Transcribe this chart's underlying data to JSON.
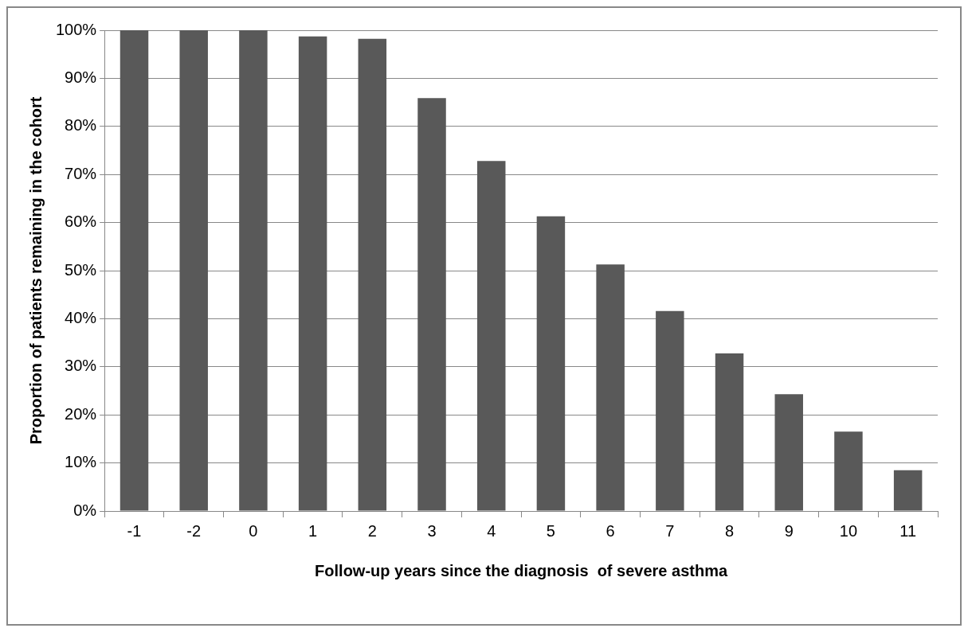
{
  "chart_data": {
    "type": "bar",
    "xlabel": "Follow-up years since the diagnosis  of severe asthma",
    "ylabel": "Proportion of patients remaining in the cohort",
    "categories": [
      "-1",
      "-2",
      "0",
      "1",
      "2",
      "3",
      "4",
      "5",
      "6",
      "7",
      "8",
      "9",
      "10",
      "11"
    ],
    "values": [
      100,
      100,
      100,
      98.7,
      98.2,
      85.9,
      72.8,
      61.3,
      51.3,
      41.6,
      32.8,
      24.3,
      16.5,
      8.5
    ],
    "color": "#595959",
    "ylim": [
      0,
      100
    ],
    "yticks": [
      {
        "value": 0,
        "label": "0%"
      },
      {
        "value": 10,
        "label": "10%"
      },
      {
        "value": 20,
        "label": "20%"
      },
      {
        "value": 30,
        "label": "30%"
      },
      {
        "value": 40,
        "label": "40%"
      },
      {
        "value": 50,
        "label": "50%"
      },
      {
        "value": 60,
        "label": "60%"
      },
      {
        "value": 70,
        "label": "70%"
      },
      {
        "value": 80,
        "label": "80%"
      },
      {
        "value": 90,
        "label": "90%"
      },
      {
        "value": 100,
        "label": "100%"
      }
    ],
    "grid": "y",
    "legend": false
  }
}
